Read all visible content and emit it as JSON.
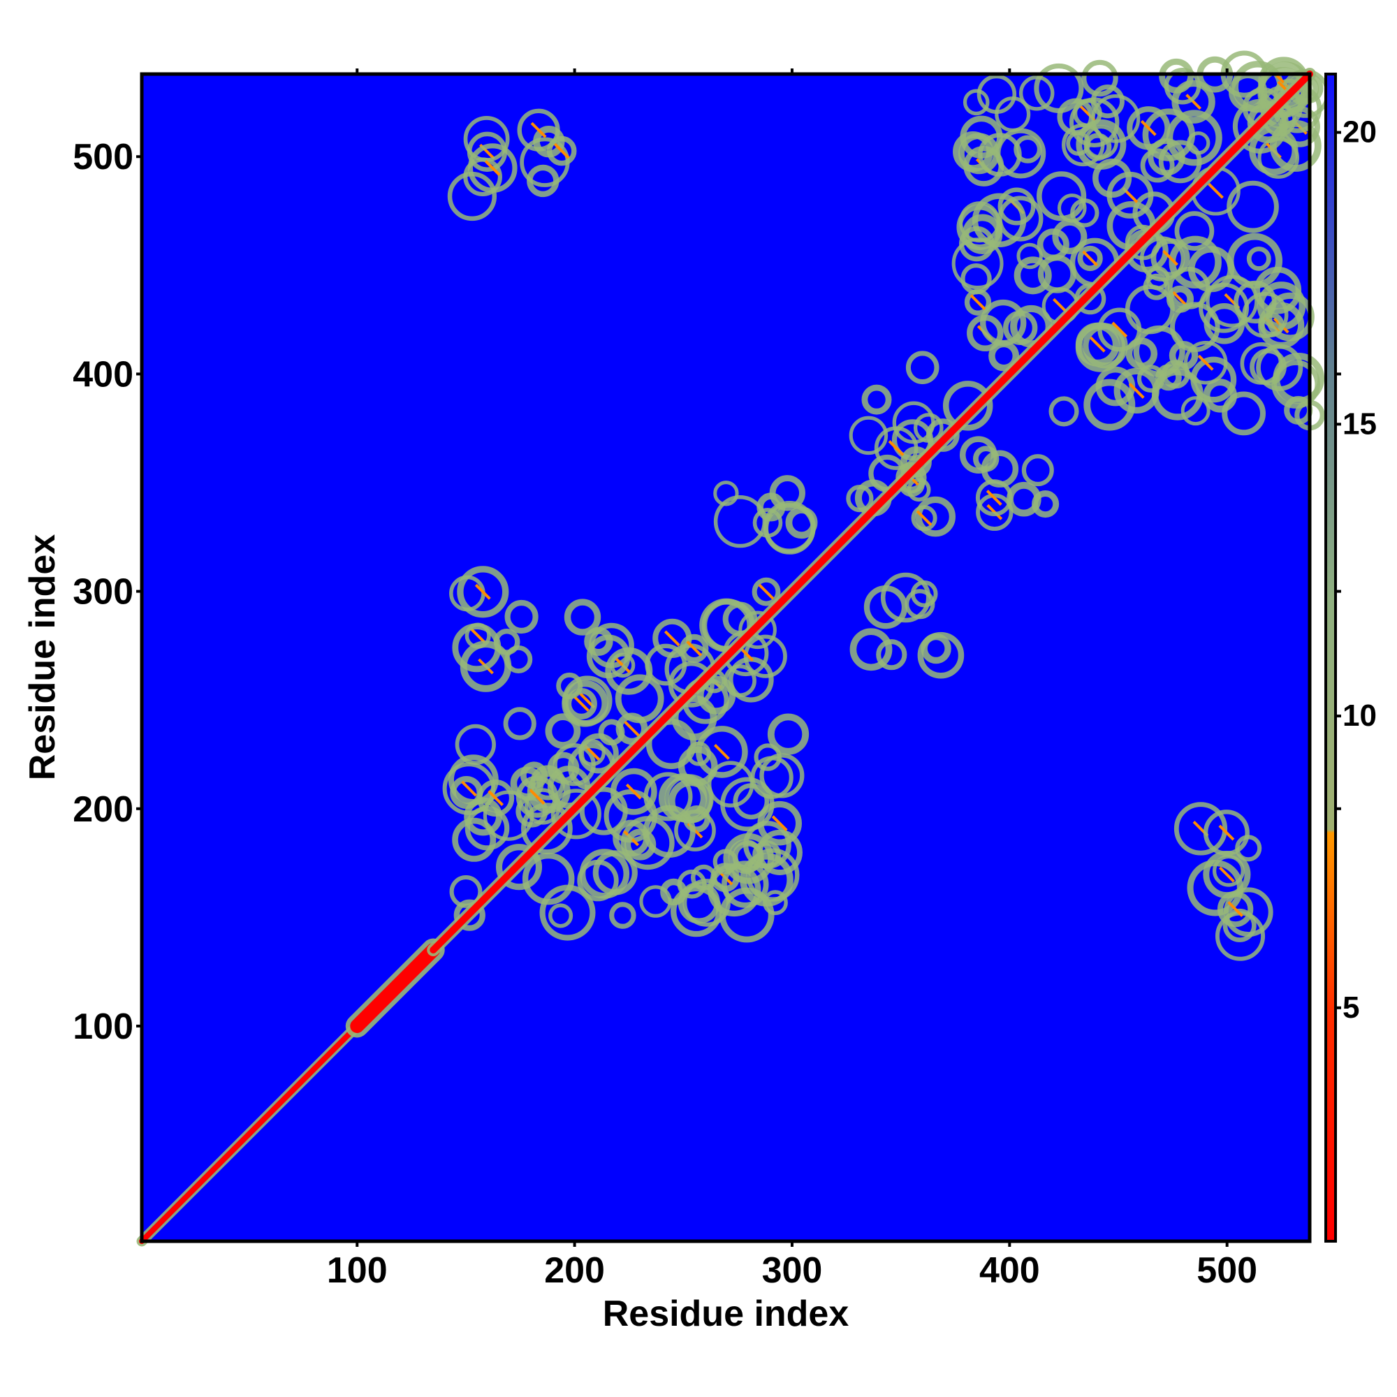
{
  "chart_data": {
    "type": "heatmap",
    "title": "",
    "xlabel": "Residue index",
    "ylabel": "Residue index",
    "xlim": [
      1,
      538
    ],
    "ylim": [
      1,
      538
    ],
    "x_ticks": [
      100,
      200,
      300,
      400,
      500
    ],
    "x_tick_labels": [
      "100",
      "200",
      "300",
      "400",
      "500"
    ],
    "y_ticks": [
      100,
      200,
      300,
      400,
      500
    ],
    "y_tick_labels": [
      "100",
      "200",
      "300",
      "400",
      "500"
    ],
    "colorbar": {
      "range": [
        1,
        21
      ],
      "ticks": [
        5,
        10,
        15,
        20
      ],
      "tick_labels": [
        "5",
        "10",
        "15",
        "20"
      ],
      "stops": [
        {
          "value": 1,
          "color": "#ff0000"
        },
        {
          "value": 5,
          "color": "#ff3000"
        },
        {
          "value": 8,
          "color": "#ff9900"
        },
        {
          "value": 8.05,
          "color": "#a0b070"
        },
        {
          "value": 12,
          "color": "#90b080"
        },
        {
          "value": 16,
          "color": "#608090"
        },
        {
          "value": 21,
          "color": "#1010ff"
        }
      ]
    },
    "background_color": "#0000ff",
    "diagonal_color": "#ff0000",
    "contact_color": "#98b878",
    "contact_core_color": "#ff8c00",
    "diagonal_segments": [
      {
        "start": 1,
        "end": 100,
        "width": 3
      },
      {
        "start": 100,
        "end": 135,
        "width": 9
      },
      {
        "start": 135,
        "end": 538,
        "width": 4
      }
    ],
    "contact_blocks": [
      {
        "x": [
          150,
          300
        ],
        "y": [
          150,
          300
        ]
      },
      {
        "x": [
          330,
          370
        ],
        "y": [
          330,
          410
        ]
      },
      {
        "x": [
          380,
          538
        ],
        "y": [
          380,
          538
        ]
      },
      {
        "x": [
          265,
          305
        ],
        "y": [
          325,
          360
        ]
      },
      {
        "x": [
          385,
          430
        ],
        "y": [
          330,
          365
        ]
      },
      {
        "x": [
          330,
          370
        ],
        "y": [
          265,
          300
        ]
      },
      {
        "x": [
          145,
          195
        ],
        "y": [
          478,
          515
        ]
      },
      {
        "x": [
          485,
          515
        ],
        "y": [
          140,
          205
        ]
      },
      {
        "x": [
          520,
          538
        ],
        "y": [
          520,
          538
        ]
      }
    ]
  }
}
